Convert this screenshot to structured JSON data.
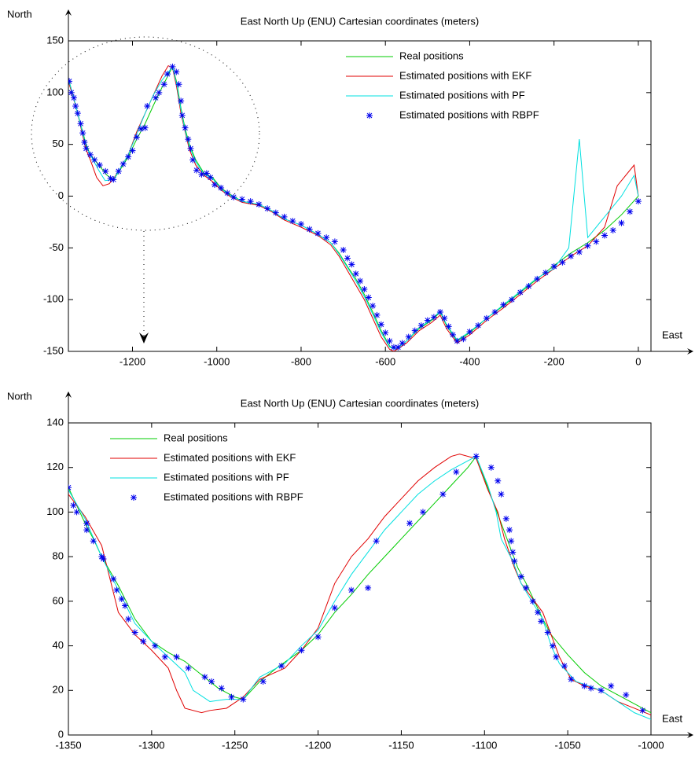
{
  "chart_data": [
    {
      "type": "line",
      "title": "East North Up (ENU) Cartesian coordinates (meters)",
      "x_label": "East",
      "y_label": "North",
      "xlim": [
        -1352,
        30
      ],
      "ylim": [
        -150,
        150
      ],
      "xticks": [
        -1200,
        -1000,
        -800,
        -600,
        -400,
        -200,
        0
      ],
      "yticks": [
        -150,
        -100,
        -50,
        0,
        50,
        100,
        150
      ],
      "legend": "upper right",
      "series": [
        {
          "name": "Real positions",
          "color": "#00cc00",
          "style": "line",
          "x": [
            -1350,
            -1340,
            -1330,
            -1320,
            -1310,
            -1300,
            -1280,
            -1260,
            -1245,
            -1230,
            -1210,
            -1190,
            -1170,
            -1150,
            -1130,
            -1105,
            -1095,
            -1085,
            -1075,
            -1065,
            -1050,
            -1030,
            -1010,
            -990,
            -970,
            -940,
            -900,
            -870,
            -840,
            -800,
            -760,
            -730,
            -710,
            -690,
            -670,
            -650,
            -630,
            -610,
            -590,
            -575,
            -550,
            -520,
            -490,
            -470,
            -455,
            -430,
            -400,
            -360,
            -320,
            -280,
            -240,
            -200,
            -160,
            -120,
            -80,
            -40,
            0
          ],
          "values": [
            111,
            95,
            80,
            65,
            50,
            40,
            30,
            20,
            16,
            25,
            38,
            55,
            70,
            88,
            105,
            125,
            110,
            85,
            65,
            50,
            35,
            22,
            18,
            8,
            2,
            -5,
            -8,
            -14,
            -22,
            -28,
            -37,
            -45,
            -55,
            -68,
            -80,
            -95,
            -112,
            -130,
            -145,
            -148,
            -140,
            -128,
            -120,
            -112,
            -125,
            -140,
            -132,
            -118,
            -106,
            -93,
            -80,
            -67,
            -55,
            -45,
            -33,
            -18,
            0
          ]
        },
        {
          "name": "Estimated positions with EKF",
          "color": "#e00000",
          "style": "line",
          "x": [
            -1350,
            -1340,
            -1330,
            -1320,
            -1310,
            -1300,
            -1285,
            -1270,
            -1255,
            -1245,
            -1230,
            -1210,
            -1190,
            -1170,
            -1150,
            -1130,
            -1115,
            -1105,
            -1095,
            -1085,
            -1075,
            -1065,
            -1050,
            -1030,
            -1010,
            -990,
            -970,
            -940,
            -900,
            -870,
            -840,
            -800,
            -760,
            -730,
            -710,
            -690,
            -670,
            -650,
            -630,
            -610,
            -590,
            -580,
            -550,
            -520,
            -490,
            -470,
            -455,
            -430,
            -400,
            -360,
            -320,
            -280,
            -240,
            -200,
            -160,
            -120,
            -80,
            -50,
            -10,
            0
          ],
          "values": [
            108,
            95,
            80,
            62,
            45,
            35,
            18,
            10,
            12,
            17,
            26,
            40,
            62,
            80,
            98,
            116,
            126,
            124,
            105,
            80,
            62,
            45,
            30,
            20,
            14,
            6,
            0,
            -6,
            -9,
            -15,
            -23,
            -30,
            -38,
            -47,
            -58,
            -72,
            -86,
            -100,
            -118,
            -136,
            -148,
            -150,
            -142,
            -130,
            -122,
            -115,
            -128,
            -142,
            -134,
            -120,
            -108,
            -95,
            -82,
            -70,
            -58,
            -48,
            -30,
            10,
            30,
            0
          ]
        },
        {
          "name": "Estimated positions with PF",
          "color": "#00e0e0",
          "style": "line",
          "x": [
            -1350,
            -1340,
            -1330,
            -1320,
            -1310,
            -1300,
            -1280,
            -1265,
            -1245,
            -1230,
            -1210,
            -1190,
            -1170,
            -1150,
            -1130,
            -1105,
            -1095,
            -1085,
            -1075,
            -1065,
            -1050,
            -1030,
            -1010,
            -990,
            -970,
            -940,
            -900,
            -870,
            -840,
            -800,
            -760,
            -730,
            -710,
            -690,
            -670,
            -650,
            -630,
            -610,
            -590,
            -575,
            -550,
            -520,
            -490,
            -470,
            -455,
            -430,
            -400,
            -360,
            -320,
            -280,
            -240,
            -200,
            -165,
            -140,
            -120,
            -80,
            -40,
            -10,
            0
          ],
          "values": [
            110,
            96,
            80,
            64,
            48,
            40,
            25,
            15,
            16,
            26,
            40,
            60,
            80,
            98,
            112,
            125,
            108,
            83,
            63,
            48,
            33,
            21,
            17,
            7,
            1,
            -5,
            -8,
            -14,
            -22,
            -28,
            -37,
            -45,
            -56,
            -69,
            -82,
            -97,
            -114,
            -132,
            -146,
            -148,
            -140,
            -127,
            -119,
            -111,
            -124,
            -139,
            -131,
            -118,
            -105,
            -92,
            -79,
            -70,
            -50,
            55,
            -40,
            -20,
            0,
            20,
            0
          ]
        },
        {
          "name": "Estimated positions with RBPF",
          "color": "#0000ee",
          "style": "marker",
          "x": [
            -1350,
            -1345,
            -1339,
            -1335,
            -1330,
            -1323,
            -1318,
            -1314,
            -1310,
            -1300,
            -1290,
            -1278,
            -1264,
            -1252,
            -1245,
            -1233,
            -1222,
            -1210,
            -1200,
            -1190,
            -1180,
            -1170,
            -1165,
            -1145,
            -1137,
            -1125,
            -1117,
            -1105,
            -1096,
            -1090,
            -1085,
            -1082,
            -1075,
            -1068,
            -1062,
            -1057,
            -1048,
            -1036,
            -1024,
            -1015,
            -1005,
            -990,
            -975,
            -960,
            -940,
            -920,
            -900,
            -880,
            -860,
            -840,
            -820,
            -800,
            -780,
            -760,
            -740,
            -720,
            -700,
            -690,
            -680,
            -670,
            -660,
            -650,
            -640,
            -630,
            -620,
            -610,
            -600,
            -590,
            -580,
            -570,
            -560,
            -545,
            -530,
            -515,
            -500,
            -485,
            -470,
            -460,
            -450,
            -440,
            -430,
            -415,
            -400,
            -380,
            -360,
            -340,
            -320,
            -300,
            -280,
            -260,
            -240,
            -220,
            -200,
            -180,
            -160,
            -140,
            -120,
            -100,
            -80,
            -60,
            -40,
            -20,
            0
          ],
          "values": [
            111,
            100,
            95,
            87,
            80,
            70,
            61,
            52,
            46,
            40,
            35,
            30,
            24,
            17,
            16,
            24,
            31,
            38,
            44,
            57,
            65,
            66,
            87,
            95,
            100,
            108,
            118,
            125,
            120,
            108,
            92,
            78,
            66,
            55,
            46,
            35,
            25,
            21,
            22,
            18,
            11,
            8,
            3,
            -1,
            -3,
            -5,
            -8,
            -12,
            -16,
            -20,
            -24,
            -27,
            -32,
            -36,
            -40,
            -44,
            -52,
            -60,
            -66,
            -75,
            -82,
            -90,
            -98,
            -106,
            -115,
            -124,
            -132,
            -140,
            -146,
            -146,
            -142,
            -136,
            -130,
            -125,
            -120,
            -117,
            -112,
            -118,
            -126,
            -134,
            -140,
            -138,
            -131,
            -125,
            -118,
            -112,
            -105,
            -100,
            -93,
            -87,
            -80,
            -74,
            -68,
            -64,
            -58,
            -54,
            -48,
            -44,
            -38,
            -33,
            -26,
            -15,
            -5
          ]
        }
      ]
    },
    {
      "type": "line",
      "title": "East North Up (ENU) Cartesian coordinates (meters)",
      "x_label": "East",
      "y_label": "North",
      "xlim": [
        -1350,
        -1000
      ],
      "ylim": [
        0,
        140
      ],
      "xticks": [
        -1350,
        -1300,
        -1250,
        -1200,
        -1150,
        -1100,
        -1050,
        -1000
      ],
      "yticks": [
        0,
        20,
        40,
        60,
        80,
        100,
        120,
        140
      ],
      "legend": "upper left",
      "series": [
        {
          "name": "Real positions",
          "color": "#00cc00",
          "style": "line",
          "x": [
            -1350,
            -1345,
            -1340,
            -1335,
            -1330,
            -1320,
            -1310,
            -1300,
            -1290,
            -1280,
            -1270,
            -1260,
            -1250,
            -1245,
            -1235,
            -1225,
            -1210,
            -1200,
            -1190,
            -1180,
            -1170,
            -1160,
            -1150,
            -1140,
            -1130,
            -1120,
            -1110,
            -1105,
            -1100,
            -1095,
            -1090,
            -1085,
            -1080,
            -1075,
            -1070,
            -1065,
            -1060,
            -1050,
            -1040,
            -1030,
            -1020,
            -1010,
            -1000
          ],
          "values": [
            111,
            103,
            95,
            88,
            80,
            67,
            52,
            42,
            37,
            33,
            27,
            21,
            17,
            16,
            24,
            30,
            38,
            45,
            55,
            63,
            72,
            80,
            88,
            96,
            104,
            112,
            120,
            125,
            115,
            105,
            95,
            85,
            75,
            68,
            60,
            52,
            45,
            36,
            28,
            22,
            18,
            14,
            10
          ]
        },
        {
          "name": "Estimated positions with EKF",
          "color": "#e00000",
          "style": "line",
          "x": [
            -1350,
            -1340,
            -1330,
            -1325,
            -1320,
            -1310,
            -1300,
            -1290,
            -1285,
            -1280,
            -1270,
            -1265,
            -1255,
            -1245,
            -1235,
            -1220,
            -1210,
            -1200,
            -1190,
            -1180,
            -1170,
            -1160,
            -1150,
            -1140,
            -1130,
            -1120,
            -1115,
            -1105,
            -1098,
            -1092,
            -1088,
            -1082,
            -1078,
            -1070,
            -1065,
            -1060,
            -1055,
            -1048,
            -1040,
            -1030,
            -1020,
            -1010,
            -1000
          ],
          "values": [
            108,
            98,
            85,
            70,
            55,
            45,
            38,
            30,
            20,
            12,
            10,
            11,
            12,
            17,
            25,
            30,
            38,
            48,
            68,
            80,
            88,
            98,
            106,
            114,
            120,
            125,
            126,
            124,
            110,
            100,
            88,
            75,
            68,
            60,
            55,
            45,
            35,
            25,
            22,
            20,
            15,
            12,
            9
          ]
        },
        {
          "name": "Estimated positions with PF",
          "color": "#00e0e0",
          "style": "line",
          "x": [
            -1350,
            -1340,
            -1330,
            -1320,
            -1310,
            -1300,
            -1290,
            -1280,
            -1275,
            -1265,
            -1255,
            -1245,
            -1235,
            -1220,
            -1210,
            -1200,
            -1190,
            -1180,
            -1170,
            -1160,
            -1150,
            -1140,
            -1130,
            -1120,
            -1110,
            -1105,
            -1098,
            -1093,
            -1090,
            -1083,
            -1078,
            -1070,
            -1065,
            -1060,
            -1055,
            -1045,
            -1030,
            -1020,
            -1010,
            -1000
          ],
          "values": [
            110,
            97,
            80,
            65,
            50,
            42,
            35,
            28,
            20,
            15,
            16,
            16,
            26,
            32,
            40,
            47,
            60,
            72,
            82,
            92,
            100,
            108,
            114,
            119,
            123,
            125,
            112,
            100,
            88,
            78,
            68,
            58,
            52,
            40,
            32,
            24,
            20,
            15,
            10,
            7
          ]
        },
        {
          "name": "Estimated positions with RBPF",
          "color": "#0000ee",
          "style": "marker",
          "x": [
            -1350,
            -1347,
            -1345,
            -1339,
            -1339,
            -1335,
            -1330,
            -1329,
            -1323,
            -1321,
            -1318,
            -1316,
            -1314,
            -1310,
            -1305,
            -1298,
            -1292,
            -1285,
            -1278,
            -1268,
            -1264,
            -1258,
            -1252,
            -1245,
            -1233,
            -1222,
            -1210,
            -1200,
            -1190,
            -1180,
            -1170,
            -1165,
            -1145,
            -1137,
            -1125,
            -1117,
            -1105,
            -1096,
            -1092,
            -1090,
            -1087,
            -1085,
            -1084,
            -1083,
            -1082,
            -1078,
            -1075,
            -1071,
            -1068,
            -1066,
            -1062,
            -1059,
            -1057,
            -1052,
            -1048,
            -1040,
            -1036,
            -1030,
            -1024,
            -1015,
            -1005
          ],
          "values": [
            111,
            103,
            100,
            95,
            92,
            87,
            80,
            79,
            70,
            65,
            61,
            58,
            52,
            46,
            42,
            40,
            35,
            35,
            30,
            26,
            24,
            21,
            17,
            16,
            24,
            31,
            38,
            44,
            57,
            65,
            66,
            87,
            95,
            100,
            108,
            118,
            125,
            120,
            114,
            108,
            97,
            92,
            87,
            82,
            78,
            71,
            66,
            60,
            55,
            51,
            46,
            40,
            35,
            31,
            25,
            22,
            21,
            20,
            22,
            18,
            11
          ]
        }
      ]
    }
  ]
}
